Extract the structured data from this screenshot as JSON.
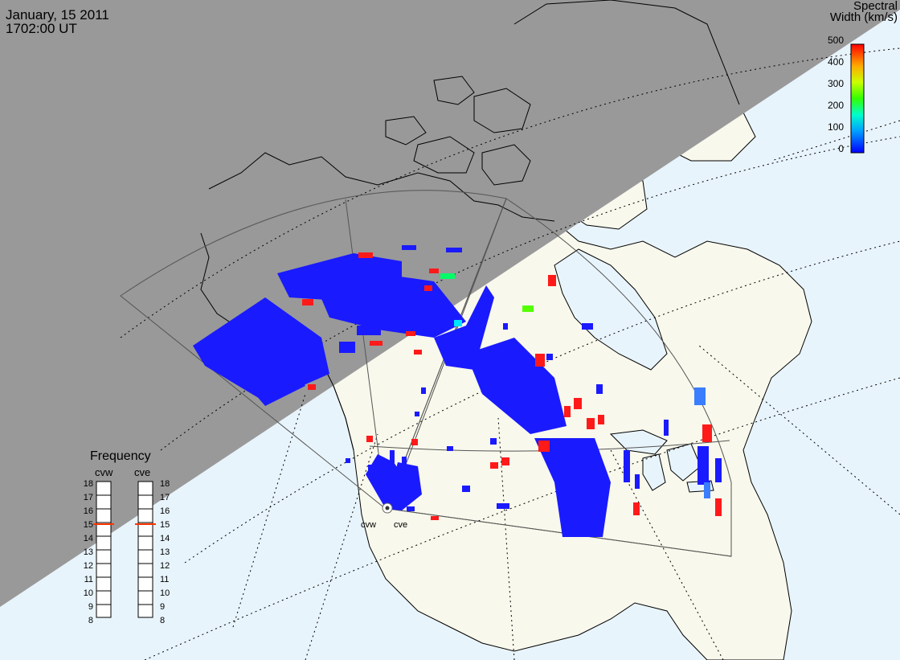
{
  "header": {
    "date": "January, 15 2011",
    "time": "1702:00 UT"
  },
  "colorbar": {
    "title_line1": "Spectral",
    "title_line2": "Width (km/s)",
    "ticks": [
      "500",
      "400",
      "300",
      "200",
      "100",
      "0"
    ]
  },
  "frequency": {
    "title": "Frequency",
    "radars": [
      "cvw",
      "cve"
    ],
    "levels": [
      "18",
      "17",
      "16",
      "15",
      "14",
      "13",
      "12",
      "11",
      "10",
      "9",
      "8"
    ],
    "cvw_value": 15,
    "cve_value": 15
  },
  "sites": {
    "west": "cvw",
    "east": "cve"
  },
  "colors": {
    "night": "#999999",
    "ocean": "#e8f4fc",
    "land": "#f8f8ec",
    "scatter_low": "#1a1aff",
    "scatter_high": "#ff1a1a"
  }
}
